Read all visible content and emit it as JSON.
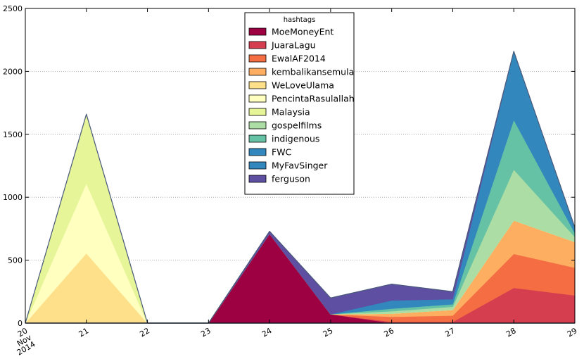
{
  "chart_data": {
    "type": "area",
    "stacked": true,
    "x": [
      "20",
      "21",
      "22",
      "23",
      "24",
      "25",
      "26",
      "27",
      "28",
      "29"
    ],
    "x_tick_labels": [
      "20\nNov\n2014",
      "21",
      "22",
      "23",
      "24",
      "25",
      "26",
      "27",
      "28",
      "29"
    ],
    "ylim": [
      0,
      2500
    ],
    "y_ticks": [
      "0",
      "500",
      "1000",
      "1500",
      "2000",
      "2500"
    ],
    "grid": "horizontal dotted",
    "legend": {
      "title": "hashtags",
      "position": "top-center"
    },
    "series": [
      {
        "name": "MoeMoneyEnt",
        "color": "#9e0142",
        "values": [
          0,
          0,
          0,
          0,
          710,
          70,
          0,
          0,
          0,
          0
        ]
      },
      {
        "name": "JuaraLagu",
        "color": "#d53e4f",
        "values": [
          0,
          0,
          0,
          0,
          0,
          0,
          10,
          10,
          280,
          220
        ]
      },
      {
        "name": "EwalAF2014",
        "color": "#f46d43",
        "values": [
          0,
          0,
          0,
          0,
          0,
          0,
          40,
          50,
          270,
          220
        ]
      },
      {
        "name": "kembalikansemula",
        "color": "#fdae61",
        "values": [
          0,
          0,
          0,
          0,
          0,
          0,
          25,
          45,
          265,
          205
        ]
      },
      {
        "name": "WeLoveUlama",
        "color": "#fee08b",
        "values": [
          0,
          555,
          0,
          0,
          0,
          0,
          0,
          0,
          0,
          0
        ]
      },
      {
        "name": "PencintaRasulallah",
        "color": "#ffffbf",
        "values": [
          0,
          555,
          0,
          0,
          0,
          0,
          0,
          0,
          0,
          0
        ]
      },
      {
        "name": "Malaysia",
        "color": "#e6f598",
        "values": [
          0,
          550,
          0,
          0,
          0,
          0,
          0,
          0,
          0,
          0
        ]
      },
      {
        "name": "gospelfilms",
        "color": "#abdda4",
        "values": [
          0,
          0,
          0,
          0,
          0,
          0,
          20,
          25,
          405,
          40
        ]
      },
      {
        "name": "indigenous",
        "color": "#66c2a5",
        "values": [
          0,
          0,
          0,
          0,
          0,
          0,
          20,
          20,
          395,
          30
        ]
      },
      {
        "name": "FWC",
        "color": "#3288bd",
        "values": [
          0,
          0,
          0,
          0,
          0,
          0,
          25,
          20,
          275,
          25
        ]
      },
      {
        "name": "MyFavSinger",
        "color": "#3288bd",
        "values": [
          0,
          0,
          0,
          0,
          0,
          0,
          40,
          20,
          270,
          20
        ]
      },
      {
        "name": "ferguson",
        "color": "#5e4fa2",
        "values": [
          0,
          0,
          0,
          0,
          20,
          130,
          130,
          60,
          0,
          0
        ]
      }
    ]
  }
}
